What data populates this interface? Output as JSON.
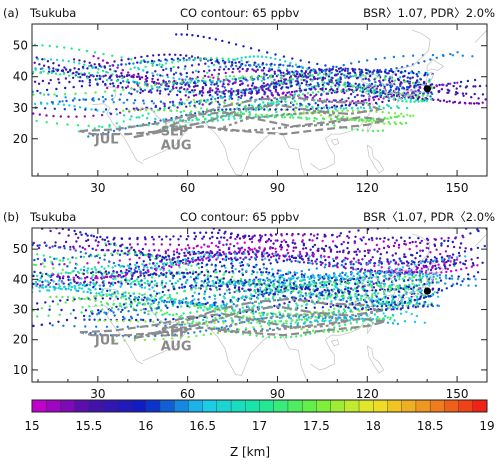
{
  "chart_data": [
    {
      "type": "scatter",
      "panel_label": "(a)",
      "station": "Tsukuba",
      "contour_label": "CO contour: 65 ppbv",
      "criteria": "BSR〉1.07, PDR〉2.0%",
      "x_ticks": [
        "30",
        "60",
        "90",
        "120",
        "150"
      ],
      "y_ticks": [
        "20",
        "30",
        "40",
        "50"
      ],
      "xlim": [
        8,
        160
      ],
      "ylim": [
        8,
        57
      ],
      "station_location": {
        "lon": 140.1,
        "lat": 36.1
      },
      "contour_month_labels": [
        "JUL",
        "AUG",
        "SEP"
      ],
      "contours": [
        {
          "name": "JUL",
          "points": [
            [
              24,
              22.5
            ],
            [
              35,
              23
            ],
            [
              50,
              25
            ],
            [
              60,
              27.5
            ],
            [
              72,
              28.5
            ],
            [
              85,
              26
            ],
            [
              95,
              24
            ],
            [
              108,
              25.5
            ],
            [
              118,
              27
            ],
            [
              126,
              26
            ],
            [
              120,
              24.5
            ],
            [
              105,
              23
            ],
            [
              92,
              21.5
            ],
            [
              78,
              22.5
            ],
            [
              65,
              24
            ],
            [
              52,
              22.5
            ],
            [
              40,
              21.5
            ],
            [
              28,
              21.5
            ],
            [
              24,
              22.5
            ]
          ]
        },
        {
          "name": "AUG",
          "points": [
            [
              42,
              20.5
            ],
            [
              55,
              23
            ],
            [
              68,
              26
            ],
            [
              78,
              29.5
            ],
            [
              90,
              31
            ],
            [
              102,
              29
            ],
            [
              114,
              28
            ],
            [
              124,
              29.5
            ],
            [
              119,
              31.5
            ],
            [
              106,
              32
            ],
            [
              94,
              33.5
            ],
            [
              82,
              32.5
            ],
            [
              70,
              30
            ],
            [
              60,
              26.5
            ],
            [
              50,
              22.5
            ],
            [
              42,
              20.5
            ]
          ]
        },
        {
          "name": "SEP",
          "points": [
            [
              70,
              23
            ],
            [
              80,
              26.5
            ],
            [
              94,
              28
            ],
            [
              105,
              28.5
            ],
            [
              113,
              26
            ],
            [
              106,
              24.5
            ],
            [
              96,
              24
            ],
            [
              86,
              23
            ],
            [
              76,
              22.5
            ],
            [
              70,
              23
            ]
          ]
        }
      ],
      "altitude_range_km": [
        15.0,
        17.8
      ],
      "n_trajectories": 46
    },
    {
      "type": "scatter",
      "panel_label": "(b)",
      "station": "Tsukuba",
      "contour_label": "CO contour: 65 ppbv",
      "criteria": "BSR〈1.07, PDR〈2.0%",
      "x_ticks": [
        "30",
        "60",
        "90",
        "120",
        "150"
      ],
      "y_ticks": [
        "10",
        "20",
        "30",
        "40",
        "50"
      ],
      "xlim": [
        8,
        160
      ],
      "ylim": [
        6,
        57
      ],
      "station_location": {
        "lon": 140.1,
        "lat": 36.1
      },
      "contour_month_labels": [
        "JUL",
        "AUG",
        "SEP"
      ],
      "contours": [
        {
          "name": "JUL",
          "points": [
            [
              24,
              22.5
            ],
            [
              35,
              23
            ],
            [
              50,
              25
            ],
            [
              60,
              27.5
            ],
            [
              72,
              28.5
            ],
            [
              85,
              26
            ],
            [
              95,
              24
            ],
            [
              108,
              25.5
            ],
            [
              118,
              27
            ],
            [
              126,
              26
            ],
            [
              120,
              24.5
            ],
            [
              105,
              23
            ],
            [
              92,
              21.5
            ],
            [
              78,
              22.5
            ],
            [
              65,
              24
            ],
            [
              52,
              22.5
            ],
            [
              40,
              21.5
            ],
            [
              28,
              21.5
            ],
            [
              24,
              22.5
            ]
          ]
        },
        {
          "name": "AUG",
          "points": [
            [
              42,
              20.5
            ],
            [
              55,
              23
            ],
            [
              68,
              26
            ],
            [
              78,
              29.5
            ],
            [
              90,
              31
            ],
            [
              102,
              29
            ],
            [
              114,
              28
            ],
            [
              124,
              29.5
            ],
            [
              119,
              31.5
            ],
            [
              106,
              32
            ],
            [
              94,
              33.5
            ],
            [
              82,
              32.5
            ],
            [
              70,
              30
            ],
            [
              60,
              26.5
            ],
            [
              50,
              22.5
            ],
            [
              42,
              20.5
            ]
          ]
        },
        {
          "name": "SEP",
          "points": [
            [
              70,
              23
            ],
            [
              80,
              26.5
            ],
            [
              94,
              28
            ],
            [
              105,
              28.5
            ],
            [
              113,
              26
            ],
            [
              106,
              24.5
            ],
            [
              96,
              24
            ],
            [
              86,
              23
            ],
            [
              76,
              22.5
            ],
            [
              70,
              23
            ]
          ]
        }
      ],
      "altitude_range_km": [
        15.0,
        17.8
      ],
      "n_trajectories": 72
    }
  ],
  "colorbar": {
    "label": "Z [km]",
    "min": 15,
    "max": 19,
    "n_bins": 32,
    "tick_labels": [
      "15",
      "15.5",
      "16",
      "16.5",
      "17",
      "17.5",
      "18",
      "18.5",
      "19"
    ],
    "stops": [
      {
        "z": 15.0,
        "color": "#d200d2"
      },
      {
        "z": 15.5,
        "color": "#4b0fa8"
      },
      {
        "z": 16.0,
        "color": "#0a1ec8"
      },
      {
        "z": 16.5,
        "color": "#1ec8f0"
      },
      {
        "z": 17.0,
        "color": "#18e8a0"
      },
      {
        "z": 17.5,
        "color": "#6ef03c"
      },
      {
        "z": 18.0,
        "color": "#f0e628"
      },
      {
        "z": 18.5,
        "color": "#f08c1e"
      },
      {
        "z": 19.0,
        "color": "#f01414"
      }
    ]
  },
  "colors": {
    "contour": "#8c8c8c",
    "coastline": "#c8c8c8",
    "station_marker": "#000000"
  }
}
